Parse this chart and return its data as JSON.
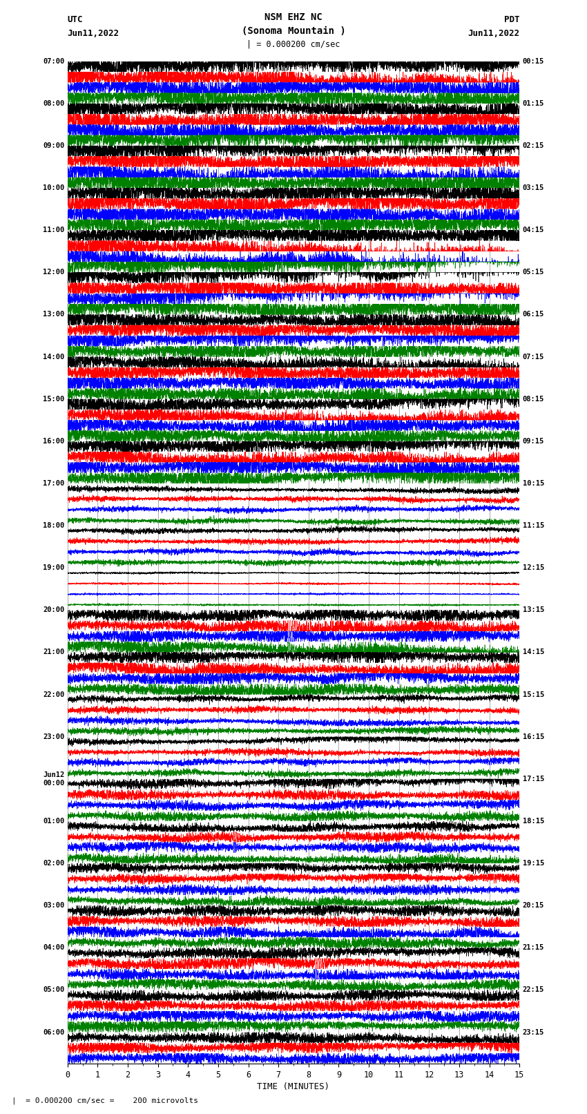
{
  "title_line1": "NSM EHZ NC",
  "title_line2": "(Sonoma Mountain )",
  "scale_label": "| = 0.000200 cm/sec",
  "left_label_top": "UTC",
  "left_label_date": "Jun11,2022",
  "right_label_top": "PDT",
  "right_label_date": "Jun11,2022",
  "xlabel": "TIME (MINUTES)",
  "footer": "|  = 0.000200 cm/sec =    200 microvolts",
  "xlim": [
    0,
    15
  ],
  "left_times": [
    "07:00",
    "",
    "",
    "",
    "08:00",
    "",
    "",
    "",
    "09:00",
    "",
    "",
    "",
    "10:00",
    "",
    "",
    "",
    "11:00",
    "",
    "",
    "",
    "12:00",
    "",
    "",
    "",
    "13:00",
    "",
    "",
    "",
    "14:00",
    "",
    "",
    "",
    "15:00",
    "",
    "",
    "",
    "16:00",
    "",
    "",
    "",
    "17:00",
    "",
    "",
    "",
    "18:00",
    "",
    "",
    "",
    "19:00",
    "",
    "",
    "",
    "20:00",
    "",
    "",
    "",
    "21:00",
    "",
    "",
    "",
    "22:00",
    "",
    "",
    "",
    "23:00",
    "",
    "",
    "",
    "Jun12\n00:00",
    "",
    "",
    "",
    "01:00",
    "",
    "",
    "",
    "02:00",
    "",
    "",
    "",
    "03:00",
    "",
    "",
    "",
    "04:00",
    "",
    "",
    "",
    "05:00",
    "",
    "",
    "",
    "06:00",
    "",
    ""
  ],
  "right_times": [
    "00:15",
    "",
    "",
    "",
    "01:15",
    "",
    "",
    "",
    "02:15",
    "",
    "",
    "",
    "03:15",
    "",
    "",
    "",
    "04:15",
    "",
    "",
    "",
    "05:15",
    "",
    "",
    "",
    "06:15",
    "",
    "",
    "",
    "07:15",
    "",
    "",
    "",
    "08:15",
    "",
    "",
    "",
    "09:15",
    "",
    "",
    "",
    "10:15",
    "",
    "",
    "",
    "11:15",
    "",
    "",
    "",
    "12:15",
    "",
    "",
    "",
    "13:15",
    "",
    "",
    "",
    "14:15",
    "",
    "",
    "",
    "15:15",
    "",
    "",
    "",
    "16:15",
    "",
    "",
    "",
    "17:15",
    "",
    "",
    "",
    "18:15",
    "",
    "",
    "",
    "19:15",
    "",
    "",
    "",
    "20:15",
    "",
    "",
    "",
    "21:15",
    "",
    "",
    "",
    "22:15",
    "",
    "",
    "",
    "23:15",
    "",
    ""
  ],
  "trace_colors": [
    "black",
    "red",
    "blue",
    "green"
  ],
  "n_rows": 95,
  "bg_color": "white",
  "seed": 42
}
